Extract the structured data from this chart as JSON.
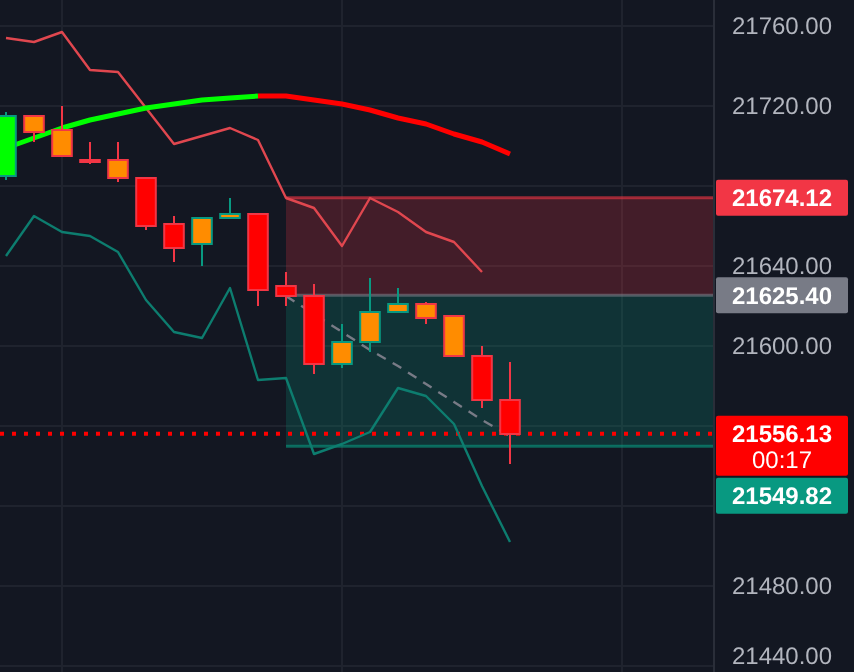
{
  "chart_data": {
    "type": "candlestick",
    "categories": [
      null,
      null,
      null,
      null,
      null,
      null,
      null,
      null,
      null,
      null,
      null,
      null,
      null,
      null,
      null,
      null,
      null,
      null,
      null,
      null,
      null,
      null,
      null,
      null,
      null,
      null
    ],
    "ohlc": [
      [
        21685,
        21717,
        21683,
        21715
      ],
      [
        21715,
        21715,
        21702,
        21707
      ],
      [
        21708,
        21720,
        21695,
        21695
      ],
      [
        21693,
        21702,
        21691,
        21692
      ],
      [
        21693,
        21702,
        21682,
        21684
      ],
      [
        21684,
        21684,
        21658,
        21660
      ],
      [
        21661,
        21665,
        21642,
        21649
      ],
      [
        21651,
        21664,
        21640,
        21664
      ],
      [
        21664,
        21674,
        21664,
        21666
      ],
      [
        21666,
        21666,
        21620,
        21628
      ],
      [
        21630,
        21637,
        21620,
        21625
      ],
      [
        21625,
        21631,
        21586,
        21591
      ],
      [
        21591,
        21611,
        21589,
        21602
      ],
      [
        21602,
        21634,
        21597,
        21617
      ],
      [
        21617,
        21629,
        21617,
        21621
      ],
      [
        21621,
        21622,
        21611,
        21614
      ],
      [
        21615,
        21615,
        21595,
        21595
      ],
      [
        21595,
        21600,
        21569,
        21573
      ],
      [
        21573,
        21592,
        21541,
        21556
      ],
      null,
      null,
      null,
      null,
      null,
      null,
      null
    ],
    "colors": [
      "#00ff00",
      "#ff8c00",
      "#ff8c00",
      "#ff8c00",
      "#ff8c00",
      "#ff0000",
      "#ff0000",
      "#ff8c00",
      "#ff8c00",
      "#ff0000",
      "#ff0000",
      "#ff0000",
      "#ff8c00",
      "#ff8c00",
      "#ff8c00",
      "#ff8c00",
      "#ff8c00",
      "#ff0000",
      "#ff0000",
      null,
      null,
      null,
      null,
      null,
      null,
      null
    ],
    "series": [
      {
        "type": "line",
        "color": "#e0474f",
        "values": [
          21754,
          21752,
          21757,
          21738,
          21737,
          21719,
          21701,
          21705,
          21709,
          21703,
          21674,
          21669,
          21650,
          21674,
          21667,
          21657,
          21652,
          21637,
          null,
          null,
          null,
          null,
          null,
          null,
          null,
          null
        ]
      },
      {
        "type": "line",
        "color": "#0d7d6f",
        "values": [
          21645,
          21665,
          21657,
          21655,
          21647,
          21623,
          21607,
          21604,
          21629,
          21583,
          21584,
          21546,
          21551,
          21557,
          21579,
          21575,
          21561,
          21530,
          21502,
          null,
          null,
          null,
          null,
          null,
          null,
          null
        ]
      },
      {
        "type": "line",
        "color": "#00ff00",
        "values": [
          21699,
          21704,
          21709,
          21713,
          21716,
          21719,
          21721,
          21723,
          21724,
          21725,
          null,
          null,
          null,
          null,
          null,
          null,
          null,
          null,
          null,
          null,
          null,
          null,
          null,
          null,
          null,
          null
        ]
      },
      {
        "type": "line",
        "color": "#ff0000",
        "values": [
          null,
          null,
          null,
          null,
          null,
          null,
          null,
          null,
          null,
          21725,
          21725,
          21723,
          21721,
          21718,
          21714,
          21711,
          21706,
          21702,
          21696,
          null,
          null,
          null,
          null,
          null,
          null,
          null
        ]
      },
      {
        "type": "line",
        "color": "#787b86",
        "line_style": "dashed",
        "values": [
          null,
          null,
          null,
          null,
          null,
          null,
          null,
          null,
          null,
          null,
          21625,
          null,
          21607,
          21598,
          21590,
          21581,
          21572,
          21563,
          21555,
          null,
          null,
          null,
          null,
          null,
          null,
          null
        ]
      }
    ],
    "ylim": [
      21437,
      21773
    ],
    "yticks": [
      {
        "value": 21440,
        "label": "21440.00"
      },
      {
        "value": 21480,
        "label": "21480.00"
      },
      {
        "value": 21520,
        "label": null
      },
      {
        "value": 21560,
        "label": null
      },
      {
        "value": 21600,
        "label": "21600.00"
      },
      {
        "value": 21640,
        "label": "21640.00"
      },
      {
        "value": 21680,
        "label": null
      },
      {
        "value": 21720,
        "label": "21720.00"
      },
      {
        "value": 21760,
        "label": "21760.00"
      }
    ],
    "grid": true,
    "bands": [
      {
        "axis": "y",
        "from": 21625.4,
        "to": 21674.12,
        "color": "#f23645"
      },
      {
        "axis": "y",
        "from": 21549.82,
        "to": 21625.4,
        "color": "#089981"
      }
    ],
    "ref_lines": [
      {
        "axis": "y",
        "value": 21674.12,
        "label": "21674.12",
        "color": "#f23645",
        "line_style": "solid"
      },
      {
        "axis": "y",
        "value": 21625.4,
        "label": "21625.40",
        "color": "#787b86",
        "line_style": "solid"
      },
      {
        "axis": "y",
        "value": 21556.13,
        "label": "21556.13",
        "color": "#ff0000",
        "line_style": "dotted"
      },
      {
        "axis": "y",
        "value": 21549.82,
        "label": "21549.82",
        "color": "#089981",
        "line_style": "solid"
      }
    ],
    "annotations": [
      "00:17"
    ]
  }
}
